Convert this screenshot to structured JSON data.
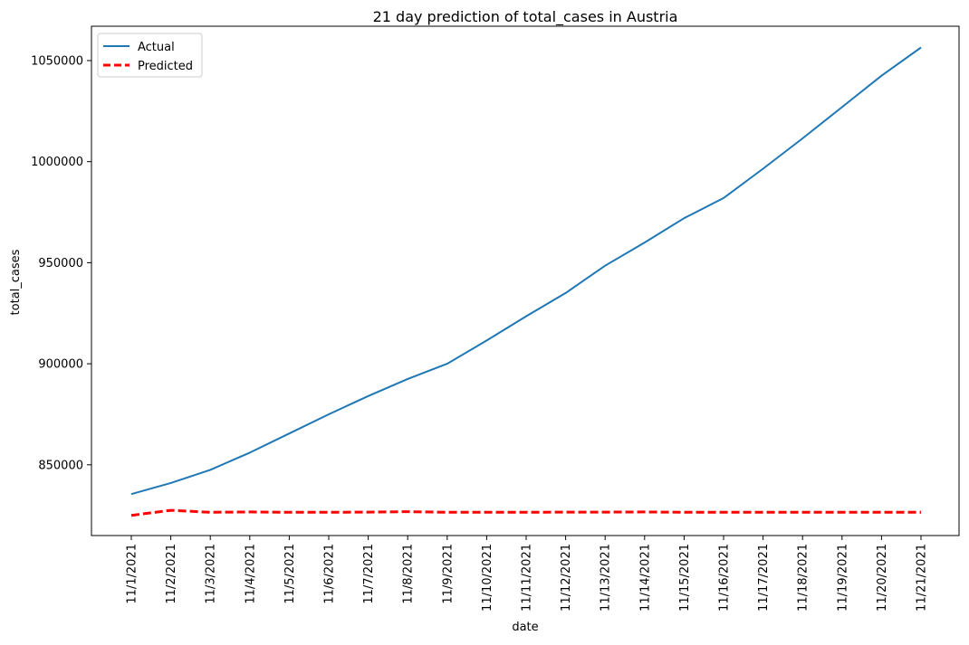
{
  "chart_data": {
    "type": "line",
    "title": "21 day prediction of total_cases in Austria",
    "xlabel": "date",
    "ylabel": "total_cases",
    "categories": [
      "11/1/2021",
      "11/2/2021",
      "11/3/2021",
      "11/4/2021",
      "11/5/2021",
      "11/6/2021",
      "11/7/2021",
      "11/8/2021",
      "11/9/2021",
      "11/10/2021",
      "11/11/2021",
      "11/12/2021",
      "11/13/2021",
      "11/14/2021",
      "11/15/2021",
      "11/16/2021",
      "11/17/2021",
      "11/18/2021",
      "11/19/2021",
      "11/20/2021",
      "11/21/2021"
    ],
    "series": [
      {
        "name": "Actual",
        "color": "#1f77b4",
        "style": "solid",
        "values": [
          835500,
          841000,
          847500,
          856000,
          865500,
          875000,
          884000,
          892500,
          900000,
          911500,
          923500,
          935000,
          948500,
          960000,
          972000,
          982000,
          996500,
          1011500,
          1027000,
          1042500,
          1056500
        ]
      },
      {
        "name": "Predicted",
        "color": "#ff0000",
        "style": "dashed",
        "values": [
          825000,
          827500,
          826500,
          826700,
          826500,
          826500,
          826600,
          826800,
          826500,
          826500,
          826500,
          826600,
          826600,
          826700,
          826500,
          826500,
          826500,
          826500,
          826500,
          826500,
          826500
        ]
      }
    ],
    "yticks": [
      850000,
      900000,
      950000,
      1000000,
      1050000
    ],
    "ylim": [
      815000,
      1067000
    ],
    "grid": false,
    "legend": "top-left"
  }
}
